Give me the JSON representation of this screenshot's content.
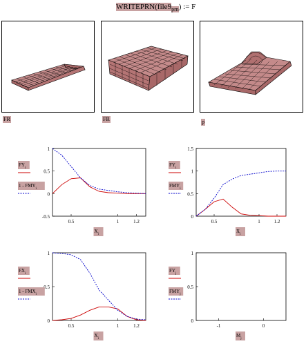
{
  "formula": {
    "prefix": "WRITEPRN",
    "arg_main": "file9",
    "arg_sub": "prn",
    "suffix": ") := F"
  },
  "surface_plots": [
    {
      "label": "FR"
    },
    {
      "label": "FR"
    },
    {
      "label": "p"
    }
  ],
  "colors": {
    "series_red": "#cc0000",
    "series_blue": "#0000cc",
    "highlight": "#c8a2a2"
  },
  "chart_data": [
    {
      "type": "line",
      "xlabel": "X",
      "xlabel_sub": "i",
      "xlim": [
        0.3,
        1.3
      ],
      "ylim": [
        -0.5,
        1
      ],
      "xticks": [
        "0.5",
        "1",
        "1.2"
      ],
      "xtick_vals": [
        0.5,
        1.0,
        1.2
      ],
      "yticks": [
        "1",
        "0.5",
        "0",
        "-0.5"
      ],
      "ytick_vals": [
        1,
        0.5,
        0,
        -0.5
      ],
      "legend": [
        {
          "main": "FY",
          "sub": "i",
          "color": "#cc0000",
          "dash": false
        },
        {
          "main": "1 - FMY",
          "sub": "i",
          "color": "#0000cc",
          "dash": true
        }
      ],
      "series": [
        {
          "color": "#cc0000",
          "dash": false,
          "x": [
            0.3,
            0.4,
            0.5,
            0.6,
            0.7,
            0.8,
            0.9,
            1.0,
            1.1,
            1.2,
            1.3
          ],
          "y": [
            0,
            0.2,
            0.33,
            0.35,
            0.15,
            0.05,
            0.02,
            0.01,
            0,
            0,
            0
          ]
        },
        {
          "color": "#0000cc",
          "dash": true,
          "x": [
            0.3,
            0.4,
            0.5,
            0.6,
            0.7,
            0.8,
            0.9,
            1.0,
            1.1,
            1.2,
            1.3
          ],
          "y": [
            1,
            0.85,
            0.6,
            0.35,
            0.18,
            0.1,
            0.07,
            0.04,
            0.02,
            0.01,
            0
          ]
        }
      ]
    },
    {
      "type": "line",
      "xlabel": "X",
      "xlabel_sub": "i",
      "xlim": [
        0.3,
        1.3
      ],
      "ylim": [
        0,
        1.5
      ],
      "xticks": [
        "0.5",
        "1",
        "1.2"
      ],
      "xtick_vals": [
        0.5,
        1.0,
        1.2
      ],
      "yticks": [
        "1.5",
        "1",
        "0.5",
        "0"
      ],
      "ytick_vals": [
        1.5,
        1,
        0.5,
        0
      ],
      "legend": [
        {
          "main": "FY",
          "sub": "i",
          "color": "#cc0000",
          "dash": false
        },
        {
          "main": "FMY",
          "sub": "i",
          "color": "#0000cc",
          "dash": true
        }
      ],
      "series": [
        {
          "color": "#cc0000",
          "dash": false,
          "x": [
            0.3,
            0.4,
            0.5,
            0.6,
            0.7,
            0.8,
            0.9,
            1.0,
            1.1,
            1.2,
            1.3
          ],
          "y": [
            0,
            0.15,
            0.32,
            0.38,
            0.2,
            0.05,
            0.02,
            0.01,
            0,
            0,
            0
          ]
        },
        {
          "color": "#0000cc",
          "dash": true,
          "x": [
            0.3,
            0.4,
            0.5,
            0.6,
            0.7,
            0.8,
            0.9,
            1.0,
            1.1,
            1.2,
            1.3
          ],
          "y": [
            0,
            0.15,
            0.4,
            0.7,
            0.82,
            0.9,
            0.93,
            0.96,
            0.99,
            1.0,
            1.0
          ]
        }
      ]
    },
    {
      "type": "line",
      "xlabel": "X",
      "xlabel_sub": "i",
      "xlim": [
        0.3,
        1.3
      ],
      "ylim": [
        0,
        1
      ],
      "xticks": [
        "0.5",
        "1",
        "1.2"
      ],
      "xtick_vals": [
        0.5,
        1.0,
        1.2
      ],
      "yticks": [
        "1",
        "0.5",
        "0"
      ],
      "ytick_vals": [
        1,
        0.5,
        0
      ],
      "legend": [
        {
          "main": "FX",
          "sub": "i",
          "color": "#cc0000",
          "dash": false
        },
        {
          "main": "1 - FMX",
          "sub": "i",
          "color": "#0000cc",
          "dash": true
        }
      ],
      "series": [
        {
          "color": "#cc0000",
          "dash": false,
          "x": [
            0.3,
            0.4,
            0.5,
            0.6,
            0.7,
            0.8,
            0.9,
            1.0,
            1.1,
            1.2,
            1.3
          ],
          "y": [
            0,
            0.01,
            0.03,
            0.08,
            0.15,
            0.2,
            0.2,
            0.17,
            0.06,
            0.01,
            0
          ]
        },
        {
          "color": "#0000cc",
          "dash": true,
          "x": [
            0.3,
            0.4,
            0.5,
            0.6,
            0.7,
            0.8,
            0.9,
            1.0,
            1.1,
            1.2,
            1.3
          ],
          "y": [
            1,
            0.99,
            0.97,
            0.9,
            0.7,
            0.45,
            0.3,
            0.15,
            0.06,
            0.02,
            0.01
          ]
        }
      ]
    },
    {
      "type": "line",
      "xlabel": "M",
      "xlabel_sub": "j",
      "xlim": [
        -1.5,
        0.5
      ],
      "ylim": [
        0,
        1
      ],
      "xticks": [
        "-1",
        "0"
      ],
      "xtick_vals": [
        -1,
        0
      ],
      "yticks": [
        "1",
        "0.5",
        "0"
      ],
      "ytick_vals": [
        1,
        0.5,
        0
      ],
      "legend": [
        {
          "main": "FY",
          "sub": "j",
          "color": "#cc0000",
          "dash": false
        },
        {
          "main": "FMY",
          "sub": "j",
          "color": "#0000cc",
          "dash": true
        }
      ],
      "series": []
    }
  ]
}
